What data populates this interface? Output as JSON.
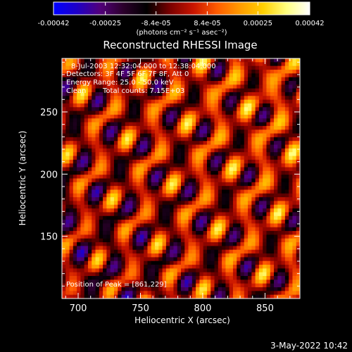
{
  "chart_data": {
    "type": "heatmap",
    "title": "Reconstructed RHESSI Image",
    "xlabel": "Heliocentric X (arcsec)",
    "ylabel": "Heliocentric Y (arcsec)",
    "xlim": [
      687,
      878
    ],
    "ylim": [
      100,
      293
    ],
    "x_ticks": [
      700,
      750,
      800,
      850
    ],
    "y_ticks": [
      150,
      200,
      250
    ],
    "colorbar": {
      "min": -0.00042,
      "max": 0.00042,
      "tick_labels": [
        "-0.00042",
        "-0.00025",
        "-8.4e-05",
        "8.4e-05",
        "0.00025",
        "0.00042"
      ],
      "units_label": "(photons cm⁻² s⁻¹ asec⁻²)",
      "stops": [
        "#0000ff",
        "#1e00c8",
        "#52007a",
        "#2b002b",
        "#000000",
        "#7a0000",
        "#c81400",
        "#ff5a00",
        "#ff9b00",
        "#ffd000",
        "#ffff80",
        "#ffffff"
      ]
    },
    "grid": false,
    "annotations": {
      "time_range": "8-Jul-2003 12:32:04.000 to 12:38:04.000",
      "detectors": "Detectors: 3F 4F 5F 6F 7F 8F, Att 0",
      "energy": "Energy Range: 25.0 - 50.0 keV",
      "clean": "Clean",
      "counts": "Total counts: 7.15E+03",
      "peak": "Position of Peak = [861,229]"
    },
    "peak_position": [
      861,
      229
    ]
  },
  "footer": {
    "date": "3-May-2022 10:42"
  }
}
